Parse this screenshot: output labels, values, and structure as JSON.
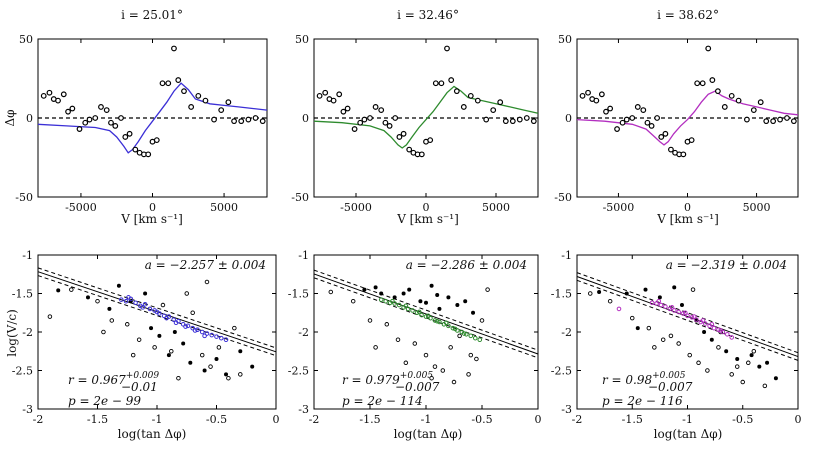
{
  "chart_data": [
    {
      "type": "line",
      "panel": "top-left",
      "title": "i = 25.01°",
      "xlabel": "V [km s⁻¹]",
      "ylabel": "Δφ",
      "xlim": [
        -8000,
        8000
      ],
      "ylim": [
        -50,
        50
      ],
      "xticks": [
        -5000,
        0,
        5000
      ],
      "xtick_labels": [
        "-5000",
        "0",
        "5000"
      ],
      "yticks": [
        -50,
        0,
        50
      ],
      "ytick_labels": [
        "-50",
        "0",
        "50"
      ],
      "color": "#3b2fd6",
      "model": {
        "x": [
          -8000,
          -6000,
          -4000,
          -3000,
          -2500,
          -2000,
          -1700,
          -1400,
          -1000,
          -500,
          0,
          500,
          1000,
          1500,
          2000,
          2500,
          3000,
          4000,
          5000,
          6000,
          7000,
          8000
        ],
        "y": [
          -4,
          -5,
          -6,
          -8,
          -12,
          -18,
          -22,
          -20,
          -15,
          -8,
          -2,
          4,
          10,
          17,
          22,
          18,
          12,
          9,
          8,
          7,
          6,
          5
        ]
      },
      "points": {
        "x": [
          -7600,
          -7200,
          -6900,
          -6600,
          -6200,
          -5900,
          -5600,
          -5100,
          -4700,
          -4400,
          -4000,
          -3600,
          -3200,
          -2900,
          -2600,
          -2200,
          -1900,
          -1600,
          -1200,
          -900,
          -600,
          -300,
          0,
          300,
          700,
          1100,
          1500,
          1800,
          2200,
          2700,
          3200,
          3700,
          4300,
          4800,
          5300,
          5700,
          6200,
          6700,
          7200,
          7700
        ],
        "y": [
          14,
          16,
          12,
          11,
          15,
          4,
          6,
          -7,
          -3,
          -1,
          0,
          7,
          5,
          -3,
          -5,
          0,
          -12,
          -10,
          -20,
          -22,
          -23,
          -23,
          -15,
          -14,
          22,
          22,
          44,
          24,
          17,
          7,
          14,
          11,
          -1,
          5,
          10,
          -2,
          -2,
          -1,
          0,
          -2
        ]
      }
    },
    {
      "type": "line",
      "panel": "top-middle",
      "title": "i = 32.46°",
      "xlabel": "V [km s⁻¹]",
      "ylabel": "",
      "xlim": [
        -8000,
        8000
      ],
      "ylim": [
        -50,
        50
      ],
      "xticks": [
        -5000,
        0,
        5000
      ],
      "xtick_labels": [
        "-5000",
        "0",
        "5000"
      ],
      "yticks": [
        -50,
        0,
        50
      ],
      "ytick_labels": [
        "-50",
        "0",
        "50"
      ],
      "color": "#2e8b2e",
      "model": {
        "x": [
          -8000,
          -6000,
          -4000,
          -3000,
          -2500,
          -2000,
          -1700,
          -1400,
          -1000,
          -500,
          0,
          500,
          1000,
          1500,
          2000,
          2500,
          3000,
          4000,
          5000,
          6000,
          7000,
          8000
        ],
        "y": [
          -2,
          -3,
          -5,
          -8,
          -12,
          -17,
          -19,
          -17,
          -12,
          -6,
          -1,
          4,
          10,
          16,
          20,
          17,
          13,
          11,
          9,
          7,
          5,
          3
        ]
      },
      "points": {
        "x": [
          -7600,
          -7200,
          -6900,
          -6600,
          -6200,
          -5900,
          -5600,
          -5100,
          -4700,
          -4400,
          -4000,
          -3600,
          -3200,
          -2900,
          -2600,
          -2200,
          -1900,
          -1600,
          -1200,
          -900,
          -600,
          -300,
          0,
          300,
          700,
          1100,
          1500,
          1800,
          2200,
          2700,
          3200,
          3700,
          4300,
          4800,
          5300,
          5700,
          6200,
          6700,
          7200,
          7700
        ],
        "y": [
          14,
          16,
          12,
          11,
          15,
          4,
          6,
          -7,
          -3,
          -1,
          0,
          7,
          5,
          -3,
          -5,
          0,
          -12,
          -10,
          -20,
          -22,
          -23,
          -23,
          -15,
          -14,
          22,
          22,
          44,
          24,
          17,
          7,
          14,
          11,
          -1,
          5,
          10,
          -2,
          -2,
          -1,
          0,
          -2
        ]
      }
    },
    {
      "type": "line",
      "panel": "top-right",
      "title": "i = 38.62°",
      "xlabel": "V [km s⁻¹]",
      "ylabel": "",
      "xlim": [
        -8000,
        8000
      ],
      "ylim": [
        -50,
        50
      ],
      "xticks": [
        -5000,
        0,
        5000
      ],
      "xtick_labels": [
        "-5000",
        "0",
        "5000"
      ],
      "yticks": [
        -50,
        0,
        50
      ],
      "ytick_labels": [
        "-50",
        "0",
        "50"
      ],
      "color": "#b32fc0",
      "model": {
        "x": [
          -8000,
          -6000,
          -4000,
          -3000,
          -2500,
          -2000,
          -1700,
          -1400,
          -1000,
          -500,
          0,
          500,
          1000,
          1500,
          2000,
          2500,
          3000,
          4000,
          5000,
          6000,
          7000,
          8000
        ],
        "y": [
          -1,
          -2,
          -4,
          -7,
          -11,
          -15,
          -17,
          -15,
          -10,
          -5,
          -1,
          4,
          10,
          15,
          17,
          14,
          12,
          9,
          7,
          5,
          3,
          2
        ]
      },
      "points": {
        "x": [
          -7600,
          -7200,
          -6900,
          -6600,
          -6200,
          -5900,
          -5600,
          -5100,
          -4700,
          -4400,
          -4000,
          -3600,
          -3200,
          -2900,
          -2600,
          -2200,
          -1900,
          -1600,
          -1200,
          -900,
          -600,
          -300,
          0,
          300,
          700,
          1100,
          1500,
          1800,
          2200,
          2700,
          3200,
          3700,
          4300,
          4800,
          5300,
          5700,
          6200,
          6700,
          7200,
          7700
        ],
        "y": [
          14,
          16,
          12,
          11,
          15,
          4,
          6,
          -7,
          -3,
          -1,
          0,
          7,
          5,
          -3,
          -5,
          0,
          -12,
          -10,
          -20,
          -22,
          -23,
          -23,
          -15,
          -14,
          22,
          22,
          44,
          24,
          17,
          7,
          14,
          11,
          -1,
          5,
          10,
          -2,
          -2,
          -1,
          0,
          -2
        ]
      }
    },
    {
      "type": "scatter",
      "panel": "bottom-left",
      "xlabel": "log(tan Δφ)",
      "ylabel": "log(V/c)",
      "xlim": [
        -2,
        0
      ],
      "ylim": [
        -3,
        -1
      ],
      "xticks": [
        -2,
        -1.5,
        -1,
        -0.5,
        0
      ],
      "xtick_labels": [
        "-2",
        "-1.5",
        "-1",
        "-0.5",
        "0"
      ],
      "yticks": [
        -3,
        -2.5,
        -2,
        -1.5,
        -1
      ],
      "ytick_labels": [
        "-3",
        "-2.5",
        "-2",
        "-1.5",
        "-1"
      ],
      "color": "#3b2fd6",
      "fit": {
        "slope": -0.52,
        "intercept": -2.257,
        "band": 0.05
      },
      "annotation_a": "a = −2.257 ± 0.004",
      "annotation_r": "r = 0.967",
      "annotation_r_sup": "+0.009",
      "annotation_r_sub": "−0.01",
      "annotation_p": "p = 2e − 99",
      "colored_points": {
        "x": [
          -1.3,
          -1.26,
          -1.22,
          -1.18,
          -1.14,
          -1.1,
          -1.06,
          -1.02,
          -0.98,
          -0.94,
          -0.9,
          -0.86,
          -0.82,
          -0.78,
          -0.74,
          -0.7,
          -0.66,
          -0.62,
          -0.58,
          -0.54,
          -0.5,
          -0.46,
          -0.42,
          -1.24,
          -1.12,
          -1.0,
          -0.92,
          -0.84,
          -0.76,
          -0.68,
          -0.6
        ],
        "y": [
          -1.58,
          -1.6,
          -1.57,
          -1.62,
          -1.66,
          -1.64,
          -1.7,
          -1.72,
          -1.76,
          -1.79,
          -1.8,
          -1.84,
          -1.86,
          -1.9,
          -1.92,
          -1.95,
          -1.97,
          -2.0,
          -2.02,
          -2.04,
          -2.06,
          -2.08,
          -2.1,
          -1.55,
          -1.68,
          -1.74,
          -1.82,
          -1.88,
          -1.93,
          -1.98,
          -2.05
        ]
      },
      "filled_points": {
        "x": [
          -1.83,
          -1.58,
          -1.32,
          -1.22,
          -1.1,
          -1.05,
          -0.98,
          -0.85,
          -0.78,
          -0.72,
          -0.6,
          -0.5,
          -0.42,
          -0.3,
          -0.2,
          -1.4,
          -0.9
        ],
        "y": [
          -1.46,
          -1.55,
          -1.4,
          -1.6,
          -1.5,
          -1.95,
          -2.05,
          -2.0,
          -2.15,
          -2.4,
          -2.5,
          -2.35,
          -2.55,
          -2.25,
          -2.45,
          -1.7,
          -2.3
        ]
      },
      "open_points": {
        "x": [
          -1.9,
          -1.72,
          -1.5,
          -1.38,
          -1.25,
          -1.15,
          -1.02,
          -0.95,
          -0.88,
          -0.75,
          -0.7,
          -0.62,
          -0.55,
          -0.48,
          -0.4,
          -0.35,
          -0.3,
          -1.45,
          -1.2,
          -0.82,
          -0.58
        ],
        "y": [
          -1.8,
          -1.45,
          -1.6,
          -1.85,
          -1.9,
          -2.1,
          -2.2,
          -1.65,
          -2.25,
          -1.5,
          -1.75,
          -2.3,
          -2.45,
          -2.2,
          -2.6,
          -1.95,
          -2.55,
          -2.0,
          -2.3,
          -2.6,
          -1.35
        ]
      }
    },
    {
      "type": "scatter",
      "panel": "bottom-middle",
      "xlabel": "log(tan Δφ)",
      "ylabel": "",
      "xlim": [
        -2,
        0
      ],
      "ylim": [
        -3,
        -1
      ],
      "xticks": [
        -2,
        -1.5,
        -1,
        -0.5,
        0
      ],
      "xtick_labels": [
        "-2",
        "-1.5",
        "-1",
        "-0.5",
        "0"
      ],
      "yticks": [
        -3,
        -2.5,
        -2,
        -1.5,
        -1
      ],
      "ytick_labels": [
        "-3",
        "-2.5",
        "-2",
        "-1.5",
        "-1"
      ],
      "color": "#2e8b2e",
      "fit": {
        "slope": -0.52,
        "intercept": -2.286,
        "band": 0.05
      },
      "annotation_a": "a = −2.286 ± 0.004",
      "annotation_r": "r = 0.979",
      "annotation_r_sup": "+0.005",
      "annotation_r_sub": "−0.007",
      "annotation_p": "p = 2e − 114",
      "colored_points": {
        "x": [
          -1.4,
          -1.36,
          -1.32,
          -1.28,
          -1.24,
          -1.2,
          -1.16,
          -1.12,
          -1.08,
          -1.04,
          -1.0,
          -0.96,
          -0.92,
          -0.88,
          -0.84,
          -0.8,
          -0.76,
          -0.72,
          -0.68,
          -0.64,
          -0.6,
          -0.56,
          -0.52,
          -1.3,
          -1.18,
          -1.06,
          -0.98,
          -0.9,
          -0.82,
          -0.74,
          -0.66
        ],
        "y": [
          -1.58,
          -1.6,
          -1.62,
          -1.63,
          -1.65,
          -1.68,
          -1.7,
          -1.72,
          -1.75,
          -1.78,
          -1.8,
          -1.82,
          -1.85,
          -1.87,
          -1.9,
          -1.92,
          -1.95,
          -1.98,
          -2.0,
          -2.03,
          -2.05,
          -2.08,
          -2.1,
          -1.6,
          -1.66,
          -1.74,
          -1.79,
          -1.86,
          -1.88,
          -1.96,
          -2.02
        ]
      },
      "filled_points": {
        "x": [
          -1.55,
          -1.45,
          -1.4,
          -1.28,
          -1.15,
          -1.05,
          -0.95,
          -0.88,
          -0.8,
          -0.72,
          -0.65,
          -0.58,
          -1.2,
          -1.0,
          -0.9
        ],
        "y": [
          -1.45,
          -1.42,
          -1.5,
          -1.55,
          -1.45,
          -1.6,
          -1.4,
          -1.7,
          -1.55,
          -1.65,
          -1.6,
          -1.75,
          -1.5,
          -1.62,
          -1.52
        ]
      },
      "open_points": {
        "x": [
          -1.85,
          -1.65,
          -1.5,
          -1.35,
          -1.25,
          -1.1,
          -1.0,
          -0.92,
          -0.85,
          -0.78,
          -0.7,
          -0.62,
          -0.55,
          -0.5,
          -0.45,
          -1.45,
          -1.18,
          -0.95,
          -0.75,
          -0.6
        ],
        "y": [
          -1.48,
          -1.6,
          -1.85,
          -1.9,
          -2.1,
          -2.15,
          -2.3,
          -2.45,
          -2.5,
          -2.2,
          -2.05,
          -2.55,
          -2.35,
          -1.85,
          -1.45,
          -2.2,
          -2.4,
          -2.6,
          -2.65,
          -2.3
        ]
      }
    },
    {
      "type": "scatter",
      "panel": "bottom-right",
      "xlabel": "log(tan Δφ)",
      "ylabel": "",
      "xlim": [
        -2,
        0
      ],
      "ylim": [
        -3,
        -1
      ],
      "xticks": [
        -2,
        -1.5,
        -1,
        -0.5,
        0
      ],
      "xtick_labels": [
        "-2",
        "-1.5",
        "-1",
        "-0.5",
        "0"
      ],
      "yticks": [
        -3,
        -2.5,
        -2,
        -1.5,
        -1
      ],
      "ytick_labels": [
        "-3",
        "-2.5",
        "-2",
        "-1.5",
        "-1"
      ],
      "color": "#b32fc0",
      "fit": {
        "slope": -0.52,
        "intercept": -2.319,
        "band": 0.05
      },
      "annotation_a": "a = −2.319 ± 0.004",
      "annotation_r": "r = 0.98",
      "annotation_r_sup": "+0.005",
      "annotation_r_sub": "−0.007",
      "annotation_p": "p = 2e − 116",
      "colored_points": {
        "x": [
          -1.32,
          -1.28,
          -1.24,
          -1.2,
          -1.16,
          -1.12,
          -1.08,
          -1.04,
          -1.0,
          -0.96,
          -0.92,
          -0.88,
          -0.84,
          -0.8,
          -0.76,
          -0.72,
          -0.68,
          -0.64,
          -0.6,
          -1.62,
          -1.26,
          -1.14,
          -1.02,
          -0.94,
          -0.86,
          -0.78,
          -0.7
        ],
        "y": [
          -1.62,
          -1.63,
          -1.65,
          -1.67,
          -1.7,
          -1.72,
          -1.74,
          -1.76,
          -1.79,
          -1.81,
          -1.84,
          -1.87,
          -1.89,
          -1.92,
          -1.95,
          -1.97,
          -2.0,
          -2.03,
          -2.07,
          -1.7,
          -1.6,
          -1.68,
          -1.75,
          -1.8,
          -1.85,
          -1.9,
          -1.98
        ]
      },
      "filled_points": {
        "x": [
          -1.8,
          -1.55,
          -1.38,
          -1.25,
          -1.12,
          -1.05,
          -0.92,
          -0.85,
          -0.78,
          -0.65,
          -0.55,
          -0.42,
          -0.35,
          -0.28,
          -0.2,
          -1.45
        ],
        "y": [
          -1.48,
          -1.5,
          -1.45,
          -1.55,
          -1.42,
          -1.65,
          -1.85,
          -2.0,
          -2.1,
          -2.25,
          -2.35,
          -2.3,
          -2.45,
          -2.4,
          -2.6,
          -1.95
        ]
      },
      "open_points": {
        "x": [
          -1.88,
          -1.7,
          -1.5,
          -1.35,
          -1.22,
          -1.08,
          -0.98,
          -0.9,
          -0.82,
          -0.72,
          -0.6,
          -0.5,
          -0.45,
          -0.4,
          -0.3,
          -1.3,
          -1.15,
          -0.95,
          -0.7,
          -0.55
        ],
        "y": [
          -1.5,
          -1.6,
          -1.82,
          -1.95,
          -2.1,
          -2.15,
          -2.3,
          -2.4,
          -2.5,
          -2.2,
          -2.55,
          -2.65,
          -2.4,
          -2.25,
          -2.7,
          -2.2,
          -2.05,
          -1.45,
          -2.0,
          -2.45
        ]
      }
    }
  ]
}
